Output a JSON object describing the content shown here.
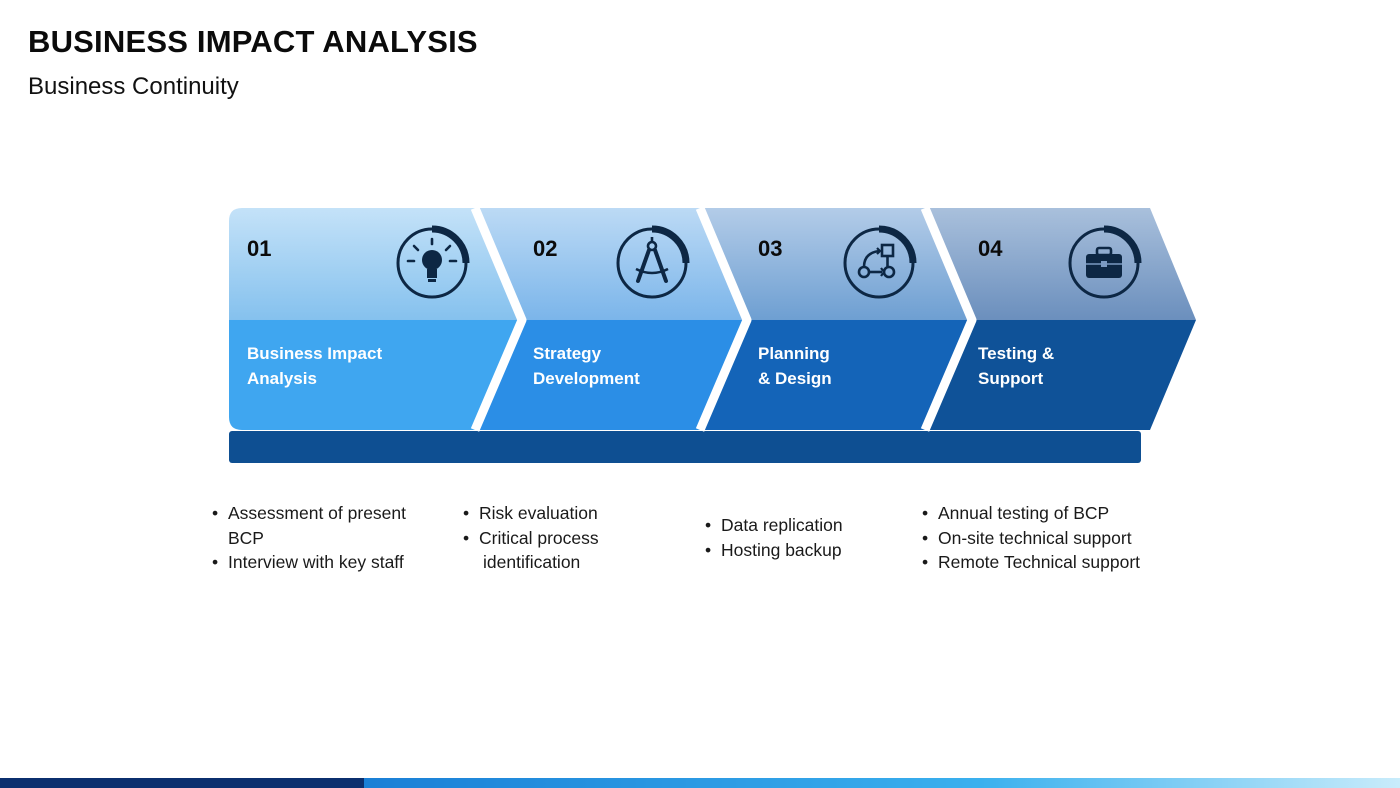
{
  "header": {
    "title": "BUSINESS IMPACT ANALYSIS",
    "subtitle": "Business Continuity"
  },
  "steps": [
    {
      "number": "01",
      "label_line1": "Business Impact",
      "label_line2": "Analysis",
      "icon": "lightbulb-icon",
      "bullets": [
        "Assessment of present",
        "BCP",
        "Interview with key staff"
      ],
      "top_color": "#8cc4ef",
      "bottom_color": "#3fa6f0"
    },
    {
      "number": "02",
      "label_line1": "Strategy",
      "label_line2": "Development",
      "icon": "compass-icon",
      "bullets": [
        "Risk evaluation",
        "Critical process",
        "identification"
      ],
      "top_color": "#86bbeb",
      "bottom_color": "#2b8ee6"
    },
    {
      "number": "03",
      "label_line1": "Planning",
      "label_line2": "& Design",
      "icon": "workflow-icon",
      "bullets": [
        "Data replication",
        "Hosting backup"
      ],
      "top_color": "#7fa9d6",
      "bottom_color": "#1464b8"
    },
    {
      "number": "04",
      "label_line1": "Testing &",
      "label_line2": "Support",
      "icon": "briefcase-icon",
      "bullets": [
        "Annual testing of BCP",
        "On-site technical support",
        "Remote Technical support"
      ],
      "top_color": "#7b9ac2",
      "bottom_color": "#0f5298"
    }
  ],
  "colors": {
    "base_bar": "#0e4f92",
    "icon_dark": "#0d2744"
  }
}
